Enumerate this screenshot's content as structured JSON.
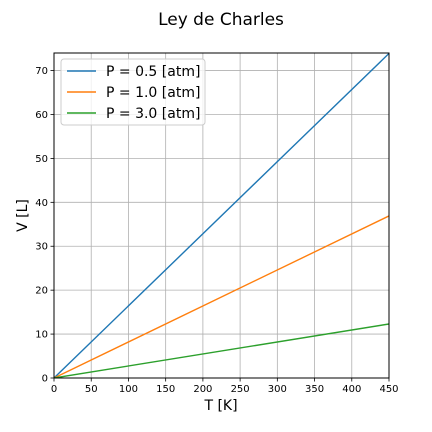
{
  "chart_data": {
    "type": "line",
    "title": "Ley de Charles",
    "xlabel": "T [K]",
    "ylabel": "V [L]",
    "xlim": [
      0,
      450
    ],
    "ylim": [
      0,
      74
    ],
    "xticks": [
      0,
      50,
      100,
      150,
      200,
      250,
      300,
      350,
      400,
      450
    ],
    "yticks": [
      0,
      10,
      20,
      30,
      40,
      50,
      60,
      70
    ],
    "grid": true,
    "legend_position": "top-left",
    "series": [
      {
        "name": "P = 0.5 [atm]",
        "color": "#1f77b4",
        "x": [
          0,
          450
        ],
        "y": [
          0,
          73.9
        ]
      },
      {
        "name": "P = 1.0 [atm]",
        "color": "#ff7f0e",
        "x": [
          0,
          450
        ],
        "y": [
          0,
          36.9
        ]
      },
      {
        "name": "P = 3.0 [atm]",
        "color": "#2ca02c",
        "x": [
          0,
          450
        ],
        "y": [
          0,
          12.3
        ]
      }
    ]
  }
}
